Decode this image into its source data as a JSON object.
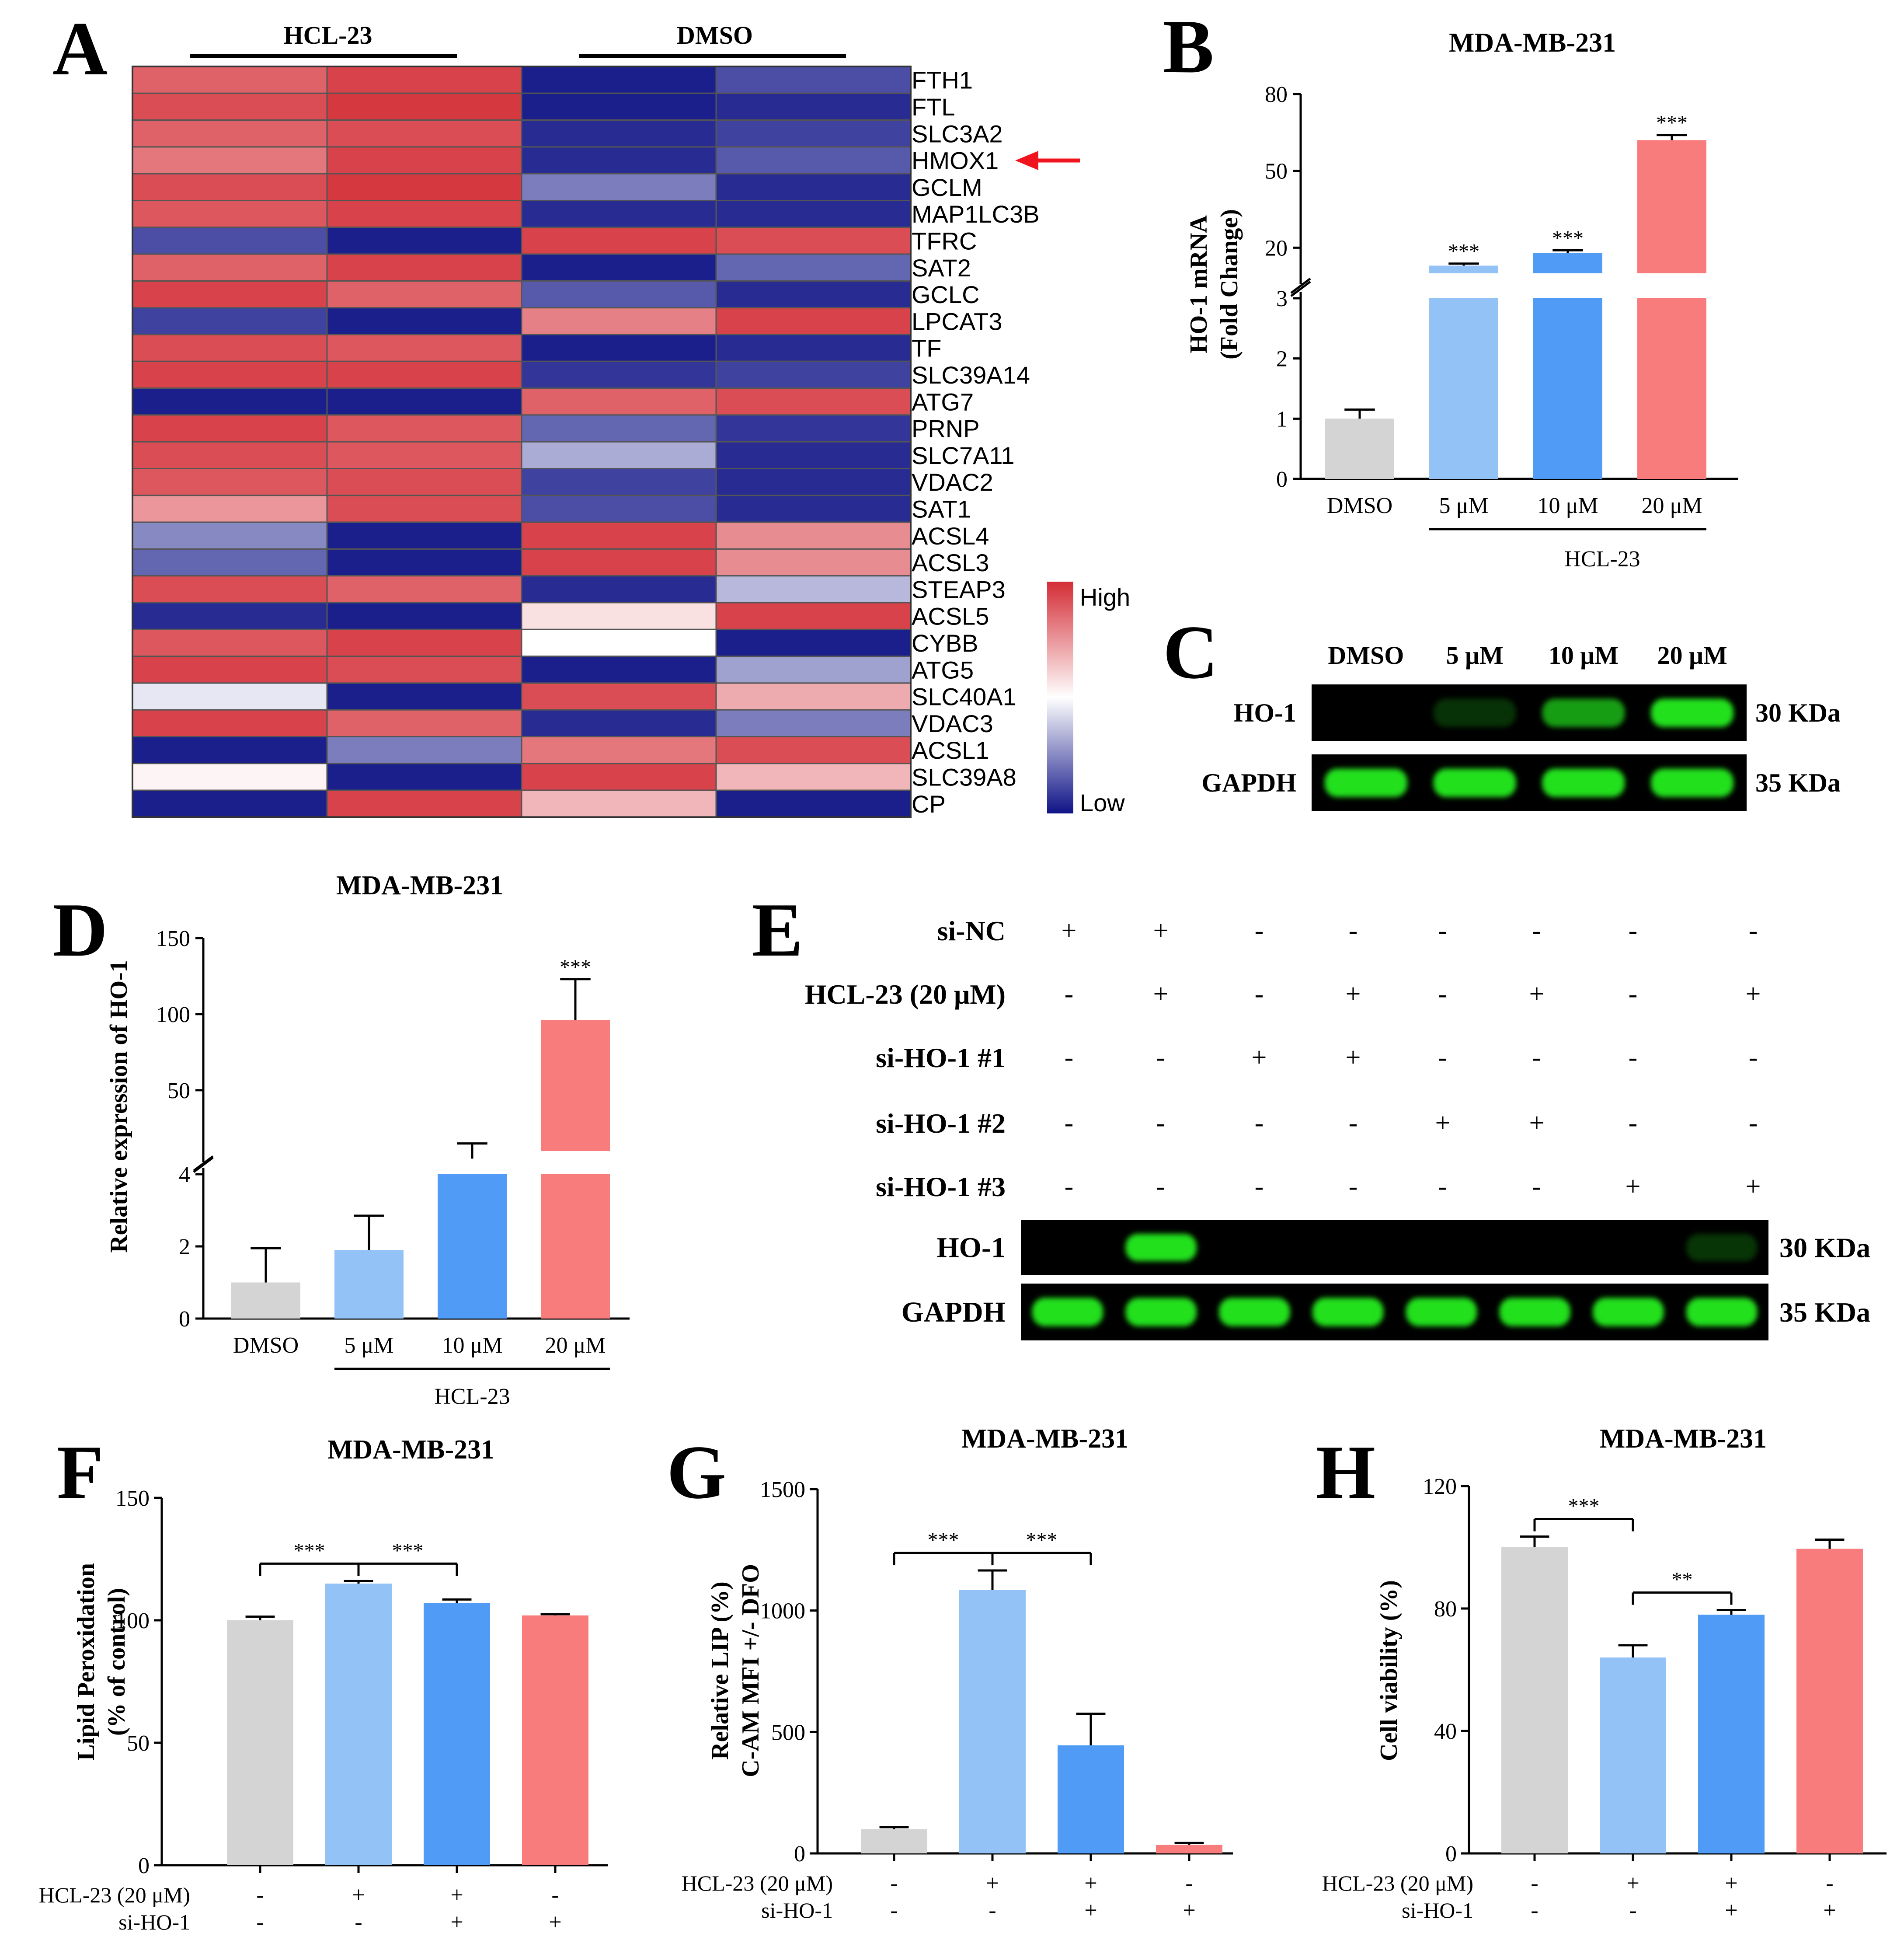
{
  "colors": {
    "high": "#d42d36",
    "low": "#0f1386",
    "mid": "#ffffff",
    "bar_gray": "#d4d4d4",
    "bar_lightblue": "#92c2f6",
    "bar_blue": "#4f9bf5",
    "bar_salmon": "#f97c7c",
    "blot_green": "#22e01f",
    "arrow_red": "#f0141e"
  },
  "panels": {
    "A": {
      "letter": "A",
      "group_labels": [
        "HCL-23",
        "DMSO"
      ],
      "legend_high": "High",
      "legend_low": "Low",
      "genes": [
        "FTH1",
        "FTL",
        "SLC3A2",
        "HMOX1",
        "GCLM",
        "MAP1LC3B",
        "TFRC",
        "SAT2",
        "GCLC",
        "LPCAT3",
        "TF",
        "SLC39A14",
        "ATG7",
        "PRNP",
        "SLC7A11",
        "VDAC2",
        "SAT1",
        "ACSL4",
        "ACSL3",
        "STEAP3",
        "ACSL5",
        "CYBB",
        "ATG5",
        "SLC40A1",
        "VDAC3",
        "ACSL1",
        "SLC39A8",
        "CP"
      ],
      "highlight_gene": "HMOX1",
      "values": [
        [
          0.75,
          0.9,
          -0.95,
          -0.75
        ],
        [
          0.85,
          0.95,
          -0.95,
          -0.9
        ],
        [
          0.75,
          0.85,
          -0.9,
          -0.8
        ],
        [
          0.65,
          0.9,
          -0.9,
          -0.7
        ],
        [
          0.85,
          0.95,
          -0.55,
          -0.9
        ],
        [
          0.8,
          0.9,
          -0.9,
          -0.9
        ],
        [
          -0.75,
          -0.95,
          0.9,
          0.85
        ],
        [
          0.75,
          0.9,
          -0.95,
          -0.65
        ],
        [
          0.9,
          0.75,
          -0.7,
          -0.9
        ],
        [
          -0.8,
          -0.95,
          0.6,
          0.9
        ],
        [
          0.85,
          0.8,
          -0.95,
          -0.9
        ],
        [
          0.9,
          0.9,
          -0.85,
          -0.8
        ],
        [
          -0.95,
          -0.95,
          0.75,
          0.85
        ],
        [
          0.9,
          0.8,
          -0.65,
          -0.85
        ],
        [
          0.85,
          0.8,
          -0.35,
          -0.9
        ],
        [
          0.8,
          0.85,
          -0.8,
          -0.9
        ],
        [
          0.5,
          0.85,
          -0.75,
          -0.9
        ],
        [
          -0.5,
          -0.95,
          0.9,
          0.55
        ],
        [
          -0.65,
          -0.95,
          0.9,
          0.55
        ],
        [
          0.85,
          0.75,
          -0.9,
          -0.3
        ],
        [
          -0.9,
          -0.95,
          0.15,
          0.9
        ],
        [
          0.8,
          0.9,
          0.0,
          -0.95
        ],
        [
          0.9,
          0.85,
          -0.95,
          -0.4
        ],
        [
          -0.1,
          -0.95,
          0.85,
          0.4
        ],
        [
          0.9,
          0.75,
          -0.9,
          -0.55
        ],
        [
          -0.95,
          -0.55,
          0.65,
          0.85
        ],
        [
          0.05,
          -0.95,
          0.9,
          0.35
        ],
        [
          -0.95,
          0.9,
          0.35,
          -0.95
        ]
      ]
    },
    "B": {
      "letter": "B",
      "title": "MDA-MB-231",
      "ylabel_line1": "HO-1 mRNA",
      "ylabel_line2": "(Fold Change)",
      "upper_ticks": [
        "20",
        "50",
        "80"
      ],
      "lower_ticks": [
        "0",
        "1",
        "2",
        "3"
      ],
      "xgroup": "HCL-23",
      "chart_data": {
        "type": "bar",
        "categories": [
          "DMSO",
          "5 μM",
          "10 μM",
          "20 μM"
        ],
        "values": [
          1.0,
          13.0,
          18.0,
          62.0
        ],
        "errors": [
          0.15,
          0.8,
          1.0,
          2.0
        ],
        "significance": [
          "",
          "***",
          "***",
          "***"
        ],
        "y_broken_axis": {
          "lower": [
            0,
            3
          ],
          "upper": [
            10,
            80
          ]
        }
      }
    },
    "C": {
      "letter": "C",
      "lanes": [
        "DMSO",
        "5 μM",
        "10 μM",
        "20 μM"
      ],
      "rows": [
        {
          "label": "HO-1",
          "size": "30 KDa",
          "intensity": [
            0.0,
            0.08,
            0.65,
            1.0
          ]
        },
        {
          "label": "GAPDH",
          "size": "35 KDa",
          "intensity": [
            1.0,
            1.0,
            1.0,
            1.0
          ]
        }
      ]
    },
    "D": {
      "letter": "D",
      "title": "MDA-MB-231",
      "ylabel": "Relative expression of HO-1",
      "upper_ticks": [
        "50",
        "100",
        "150"
      ],
      "lower_ticks": [
        "0",
        "2",
        "4"
      ],
      "xgroup": "HCL-23",
      "chart_data": {
        "type": "bar",
        "categories": [
          "DMSO",
          "5 μM",
          "10 μM",
          "20 μM"
        ],
        "values": [
          1.0,
          1.9,
          5.0,
          96.0
        ],
        "errors": [
          0.95,
          0.95,
          10.0,
          27.0
        ],
        "significance": [
          "",
          "",
          "",
          "***"
        ],
        "y_broken_axis": {
          "lower": [
            0,
            4
          ],
          "upper": [
            10,
            150
          ]
        }
      }
    },
    "E": {
      "letter": "E",
      "conditions": [
        {
          "label": "si-NC",
          "signs": [
            "+",
            "+",
            "-",
            "-",
            "-",
            "-",
            "-",
            "-"
          ]
        },
        {
          "label": "HCL-23 (20 μM)",
          "signs": [
            "-",
            "+",
            "-",
            "+",
            "-",
            "+",
            "-",
            "+"
          ]
        },
        {
          "label": "si-HO-1 #1",
          "signs": [
            "-",
            "-",
            "+",
            "+",
            "-",
            "-",
            "-",
            "-"
          ]
        },
        {
          "label": "si-HO-1 #2",
          "signs": [
            "-",
            "-",
            "-",
            "-",
            "+",
            "+",
            "-",
            "-"
          ]
        },
        {
          "label": "si-HO-1 #3",
          "signs": [
            "-",
            "-",
            "-",
            "-",
            "-",
            "-",
            "+",
            "+"
          ]
        }
      ],
      "rows": [
        {
          "label": "HO-1",
          "size": "30 KDa",
          "intensity": [
            0.0,
            1.0,
            0.0,
            0.0,
            0.0,
            0.0,
            0.0,
            0.1
          ]
        },
        {
          "label": "GAPDH",
          "size": "35 KDa",
          "intensity": [
            1.0,
            1.0,
            1.0,
            1.0,
            1.0,
            1.0,
            1.0,
            1.0
          ]
        }
      ]
    },
    "F": {
      "letter": "F",
      "title": "MDA-MB-231",
      "ylabel_line1": "Lipid Peroxidation",
      "ylabel_line2": "(% of control)",
      "ticks": [
        "0",
        "50",
        "100",
        "150"
      ],
      "row_labels": [
        "HCL-23 (20 μM)",
        "si-HO-1"
      ],
      "row_signs": [
        [
          "-",
          "+",
          "+",
          "-"
        ],
        [
          "-",
          "-",
          "+",
          "+"
        ]
      ],
      "brackets": [
        {
          "label": "***"
        },
        {
          "label": "***"
        }
      ],
      "chart_data": {
        "type": "bar",
        "categories": [
          "1",
          "2",
          "3",
          "4"
        ],
        "values": [
          100,
          115,
          107,
          102
        ],
        "errors": [
          1.5,
          1.0,
          1.5,
          0.5
        ],
        "ylim": [
          0,
          150
        ]
      }
    },
    "G": {
      "letter": "G",
      "title": "MDA-MB-231",
      "ylabel_line1": "Relative LIP (%)",
      "ylabel_line2": "C-AM MFI +/- DFO",
      "ticks": [
        "0",
        "500",
        "1000",
        "1500"
      ],
      "row_labels": [
        "HCL-23 (20 μM)",
        "si-HO-1"
      ],
      "row_signs": [
        [
          "-",
          "+",
          "+",
          "-"
        ],
        [
          "-",
          "-",
          "+",
          "+"
        ]
      ],
      "brackets": [
        {
          "label": "***"
        },
        {
          "label": "***"
        }
      ],
      "chart_data": {
        "type": "bar",
        "categories": [
          "1",
          "2",
          "3",
          "4"
        ],
        "values": [
          100,
          1085,
          445,
          35
        ],
        "errors": [
          8,
          80,
          130,
          8
        ],
        "ylim": [
          0,
          1500
        ]
      }
    },
    "H": {
      "letter": "H",
      "title": "MDA-MB-231",
      "ylabel": "Cell viability (%)",
      "ticks": [
        "0",
        "40",
        "80",
        "120"
      ],
      "row_labels": [
        "HCL-23 (20 μM)",
        "si-HO-1"
      ],
      "row_signs": [
        [
          "-",
          "+",
          "+",
          "-"
        ],
        [
          "-",
          "-",
          "+",
          "+"
        ]
      ],
      "brackets": [
        {
          "label": "***"
        },
        {
          "label": "**"
        }
      ],
      "chart_data": {
        "type": "bar",
        "categories": [
          "1",
          "2",
          "3",
          "4"
        ],
        "values": [
          100,
          64,
          78,
          99.5
        ],
        "errors": [
          3.5,
          4,
          1.5,
          3
        ],
        "ylim": [
          0,
          120
        ]
      }
    }
  }
}
